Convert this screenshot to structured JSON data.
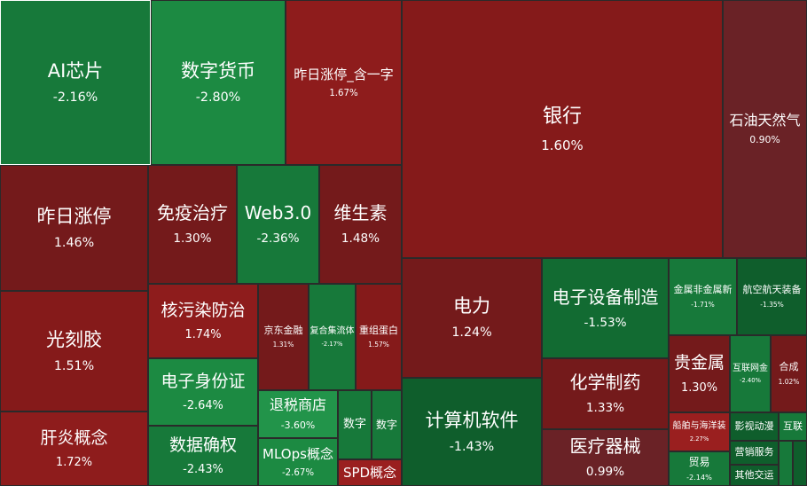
{
  "tiles": [
    {
      "name": "AI芯片",
      "change": "-2.16%"
    },
    {
      "name": "数字货币",
      "change": "-2.80%"
    },
    {
      "name": "昨日涨停_含一字",
      "change": "1.67%"
    },
    {
      "name": "银行",
      "change": "1.60%"
    },
    {
      "name": "石油天然气",
      "change": "0.90%"
    },
    {
      "name": "昨日涨停",
      "change": "1.46%"
    },
    {
      "name": "免疫治疗",
      "change": "1.30%"
    },
    {
      "name": "Web3.0",
      "change": "-2.36%"
    },
    {
      "name": "维生素",
      "change": "1.48%"
    },
    {
      "name": "光刻胶",
      "change": "1.51%"
    },
    {
      "name": "肝炎概念",
      "change": "1.72%"
    },
    {
      "name": "核污染防治",
      "change": "1.74%"
    },
    {
      "name": "京东金融",
      "change": "1.31%"
    },
    {
      "name": "复合集流体",
      "change": "-2.17%"
    },
    {
      "name": "重组蛋白",
      "change": "1.57%"
    },
    {
      "name": "电子身份证",
      "change": "-2.64%"
    },
    {
      "name": "数据确权",
      "change": "-2.43%"
    },
    {
      "name": "退税商店",
      "change": "-3.60%"
    },
    {
      "name": "数字"
    },
    {
      "name": "数字"
    },
    {
      "name": "MLOps概念",
      "change": "-2.67%"
    },
    {
      "name": "SPD概念"
    },
    {
      "name": "电力",
      "change": "1.24%"
    },
    {
      "name": "计算机软件",
      "change": "-1.43%"
    },
    {
      "name": "电子设备制造",
      "change": "-1.53%"
    },
    {
      "name": "化学制药",
      "change": "1.33%"
    },
    {
      "name": "医疗器械",
      "change": "0.99%"
    },
    {
      "name": "金属非金属新",
      "change": "-1.71%"
    },
    {
      "name": "航空航天装备",
      "change": "-1.35%"
    },
    {
      "name": "贵金属",
      "change": "1.30%"
    },
    {
      "name": "互联网金",
      "change": "-2.40%"
    },
    {
      "name": "合成",
      "change": "1.02%"
    },
    {
      "name": "船舶与海洋装",
      "change": "2.27%"
    },
    {
      "name": "影视动漫"
    },
    {
      "name": "互联"
    },
    {
      "name": "贸易",
      "change": "-2.14%"
    },
    {
      "name": "营销服务"
    },
    {
      "name": "其他交运"
    }
  ]
}
